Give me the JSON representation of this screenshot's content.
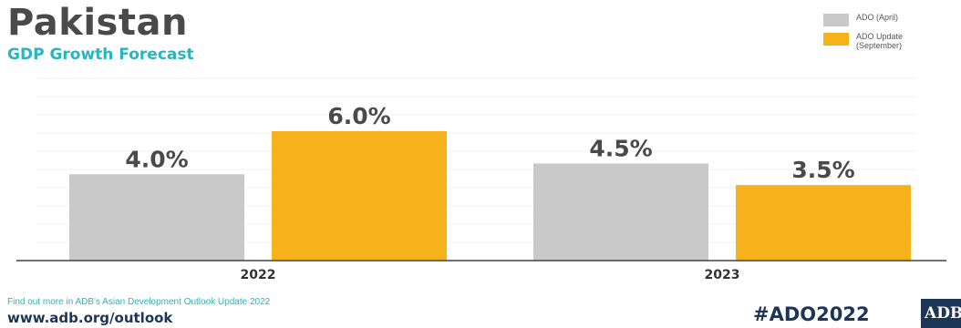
{
  "header": {
    "title": "Pakistan",
    "subtitle": "GDP Growth Forecast"
  },
  "legend": [
    {
      "label": "ADO (April)",
      "color": "#c9c9c9"
    },
    {
      "label": "ADO Update (September)",
      "color": "#f7b21b"
    }
  ],
  "chart_data": {
    "type": "bar",
    "categories": [
      "2022",
      "2023"
    ],
    "series": [
      {
        "name": "ADO (April)",
        "values": [
          4.0,
          4.5
        ],
        "labels": [
          "4.0%",
          "4.5%"
        ],
        "color": "#c9c9c9"
      },
      {
        "name": "ADO Update (September)",
        "values": [
          6.0,
          3.5
        ],
        "labels": [
          "6.0%",
          "3.5%"
        ],
        "color": "#f7b21b"
      }
    ],
    "title": "Pakistan",
    "subtitle": "GDP Growth Forecast",
    "xlabel": "",
    "ylabel": "",
    "ylim": [
      0,
      8.7
    ],
    "grid": true,
    "legend_position": "top-right"
  },
  "footer": {
    "text": "Find out more in ADB's Asian Development Outlook Update 2022",
    "url": "www.adb.org/outlook",
    "hashtag": "#ADO2022",
    "logo": "ADB"
  }
}
